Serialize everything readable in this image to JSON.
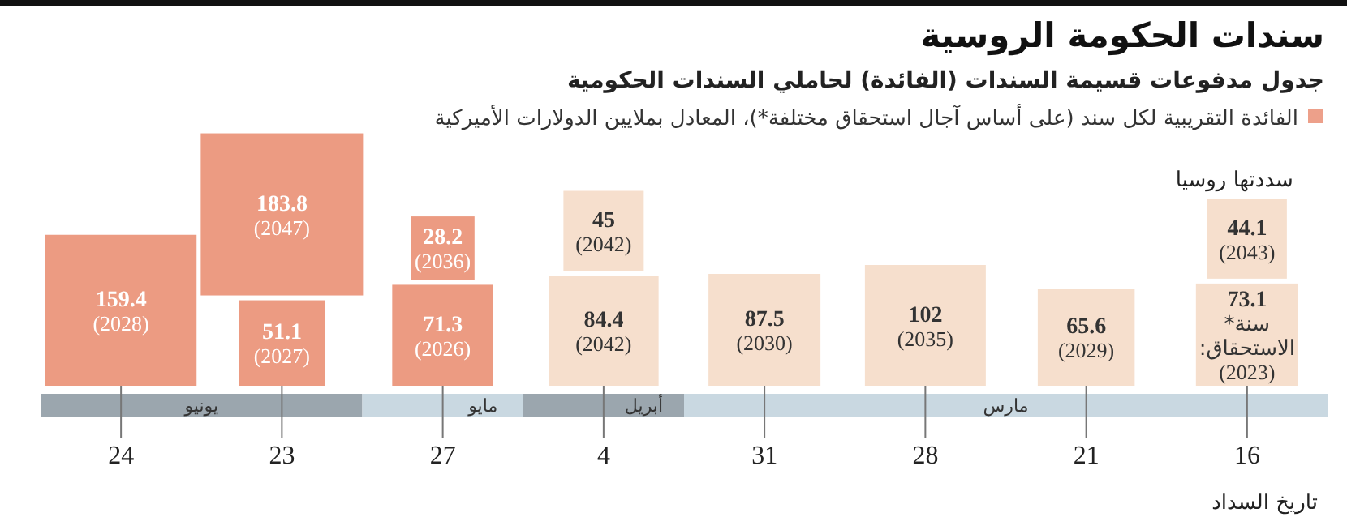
{
  "chart_data": {
    "type": "other",
    "title": "سندات الحكومة الروسية",
    "subtitle": "جدول مدفوعات قسيمة السندات (الفائدة) لحاملي السندات الحكومية",
    "xlabel": "تاريخ السداد",
    "annotations": [
      "سددتها روسيا",
      "يونيو",
      "مايو",
      "أبريل",
      "مارس"
    ],
    "legend": "top right",
    "categories": [
      "24",
      "23",
      "27",
      "4",
      "31",
      "28",
      "21",
      "16"
    ],
    "series": [
      {
        "name": "الفائدة التقريبية لكل سند (على أساس آجال استحقاق مختلفة*)، المعادل بملايين الدولارات الأميركية",
        "color": "#eda08a",
        "values": [
          159.4,
          51.1,
          71.3,
          84.4,
          87.5,
          102,
          65.6,
          73.1
        ],
        "value_labels": [
          "159.4 (2028)",
          "51.1 (2027)",
          "71.3 (2026)",
          "84.4 (2042)",
          "87.5 (2030)",
          "102 (2035)",
          "65.6 (2029)",
          "73.1 سنة* الاستحقاق: (2023)"
        ],
        "colors": [
          "#ec9b82",
          "#ec9b82",
          "#ec9b82",
          "#f6dfcd",
          "#f6dfcd",
          "#f6dfcd",
          "#f6dfcd",
          "#f6dfcd"
        ]
      },
      {
        "values": [
          null,
          183.8,
          28.2,
          45,
          null,
          null,
          null,
          44.1
        ],
        "value_labels": [
          null,
          "183.8 (2047)",
          "28.2 (2036)",
          "45 (2042)",
          null,
          null,
          null,
          "44.1 (2043)"
        ],
        "colors": [
          null,
          "#ec9b82",
          "#ec9b82",
          "#f6dfcd",
          null,
          null,
          null,
          "#f6dfcd"
        ]
      }
    ]
  }
}
